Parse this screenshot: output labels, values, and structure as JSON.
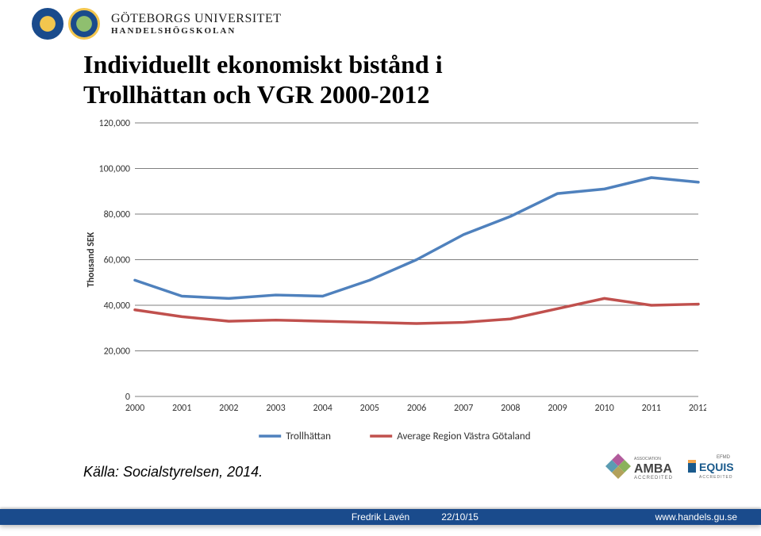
{
  "header": {
    "university": "GÖTEBORGS UNIVERSITET",
    "school": "HANDELSHÖGSKOLAN"
  },
  "title": {
    "line1": "Individuellt ekonomiskt bistånd i",
    "line2": "Trollhättan och VGR 2000-2012"
  },
  "chart": {
    "type": "line",
    "ylabel": "Thousand SEK",
    "ylim": [
      0,
      120000
    ],
    "ytick_step": 20000,
    "yticks_labels": [
      "0",
      "20,000",
      "40,000",
      "60,000",
      "80,000",
      "100,000",
      "120,000"
    ],
    "xticks_labels": [
      "2000",
      "2001",
      "2002",
      "2003",
      "2004",
      "2005",
      "2006",
      "2007",
      "2008",
      "2009",
      "2010",
      "2011",
      "2012"
    ],
    "background_color": "#ffffff",
    "grid_color": "#7f7f7f",
    "axis_fontsize": 12,
    "ylabel_fontsize": 12,
    "line_width": 3.5,
    "series": [
      {
        "name": "Trollhättan",
        "color": "#4f81bd",
        "values": [
          51000,
          44000,
          43000,
          44500,
          44000,
          51000,
          60000,
          71000,
          79000,
          89000,
          91000,
          96000,
          94000
        ]
      },
      {
        "name": "Average Region Västra Götaland",
        "color": "#c0504d",
        "values": [
          38000,
          35000,
          33000,
          33500,
          33000,
          32500,
          32000,
          32500,
          34000,
          38500,
          43000,
          40000,
          40500
        ]
      }
    ],
    "legend": {
      "trollhattan": "Trollhättan",
      "vgr": "Average Region Västra Götaland"
    }
  },
  "source": "Källa: Socialstyrelsen, 2014.",
  "footer": {
    "author": "Fredrik Lavén",
    "date": "22/10/15",
    "url": "www.handels.gu.se"
  },
  "accreditations": {
    "amba": "AMBA ACCREDITED",
    "equis": "EQUIS ACCREDITED"
  }
}
